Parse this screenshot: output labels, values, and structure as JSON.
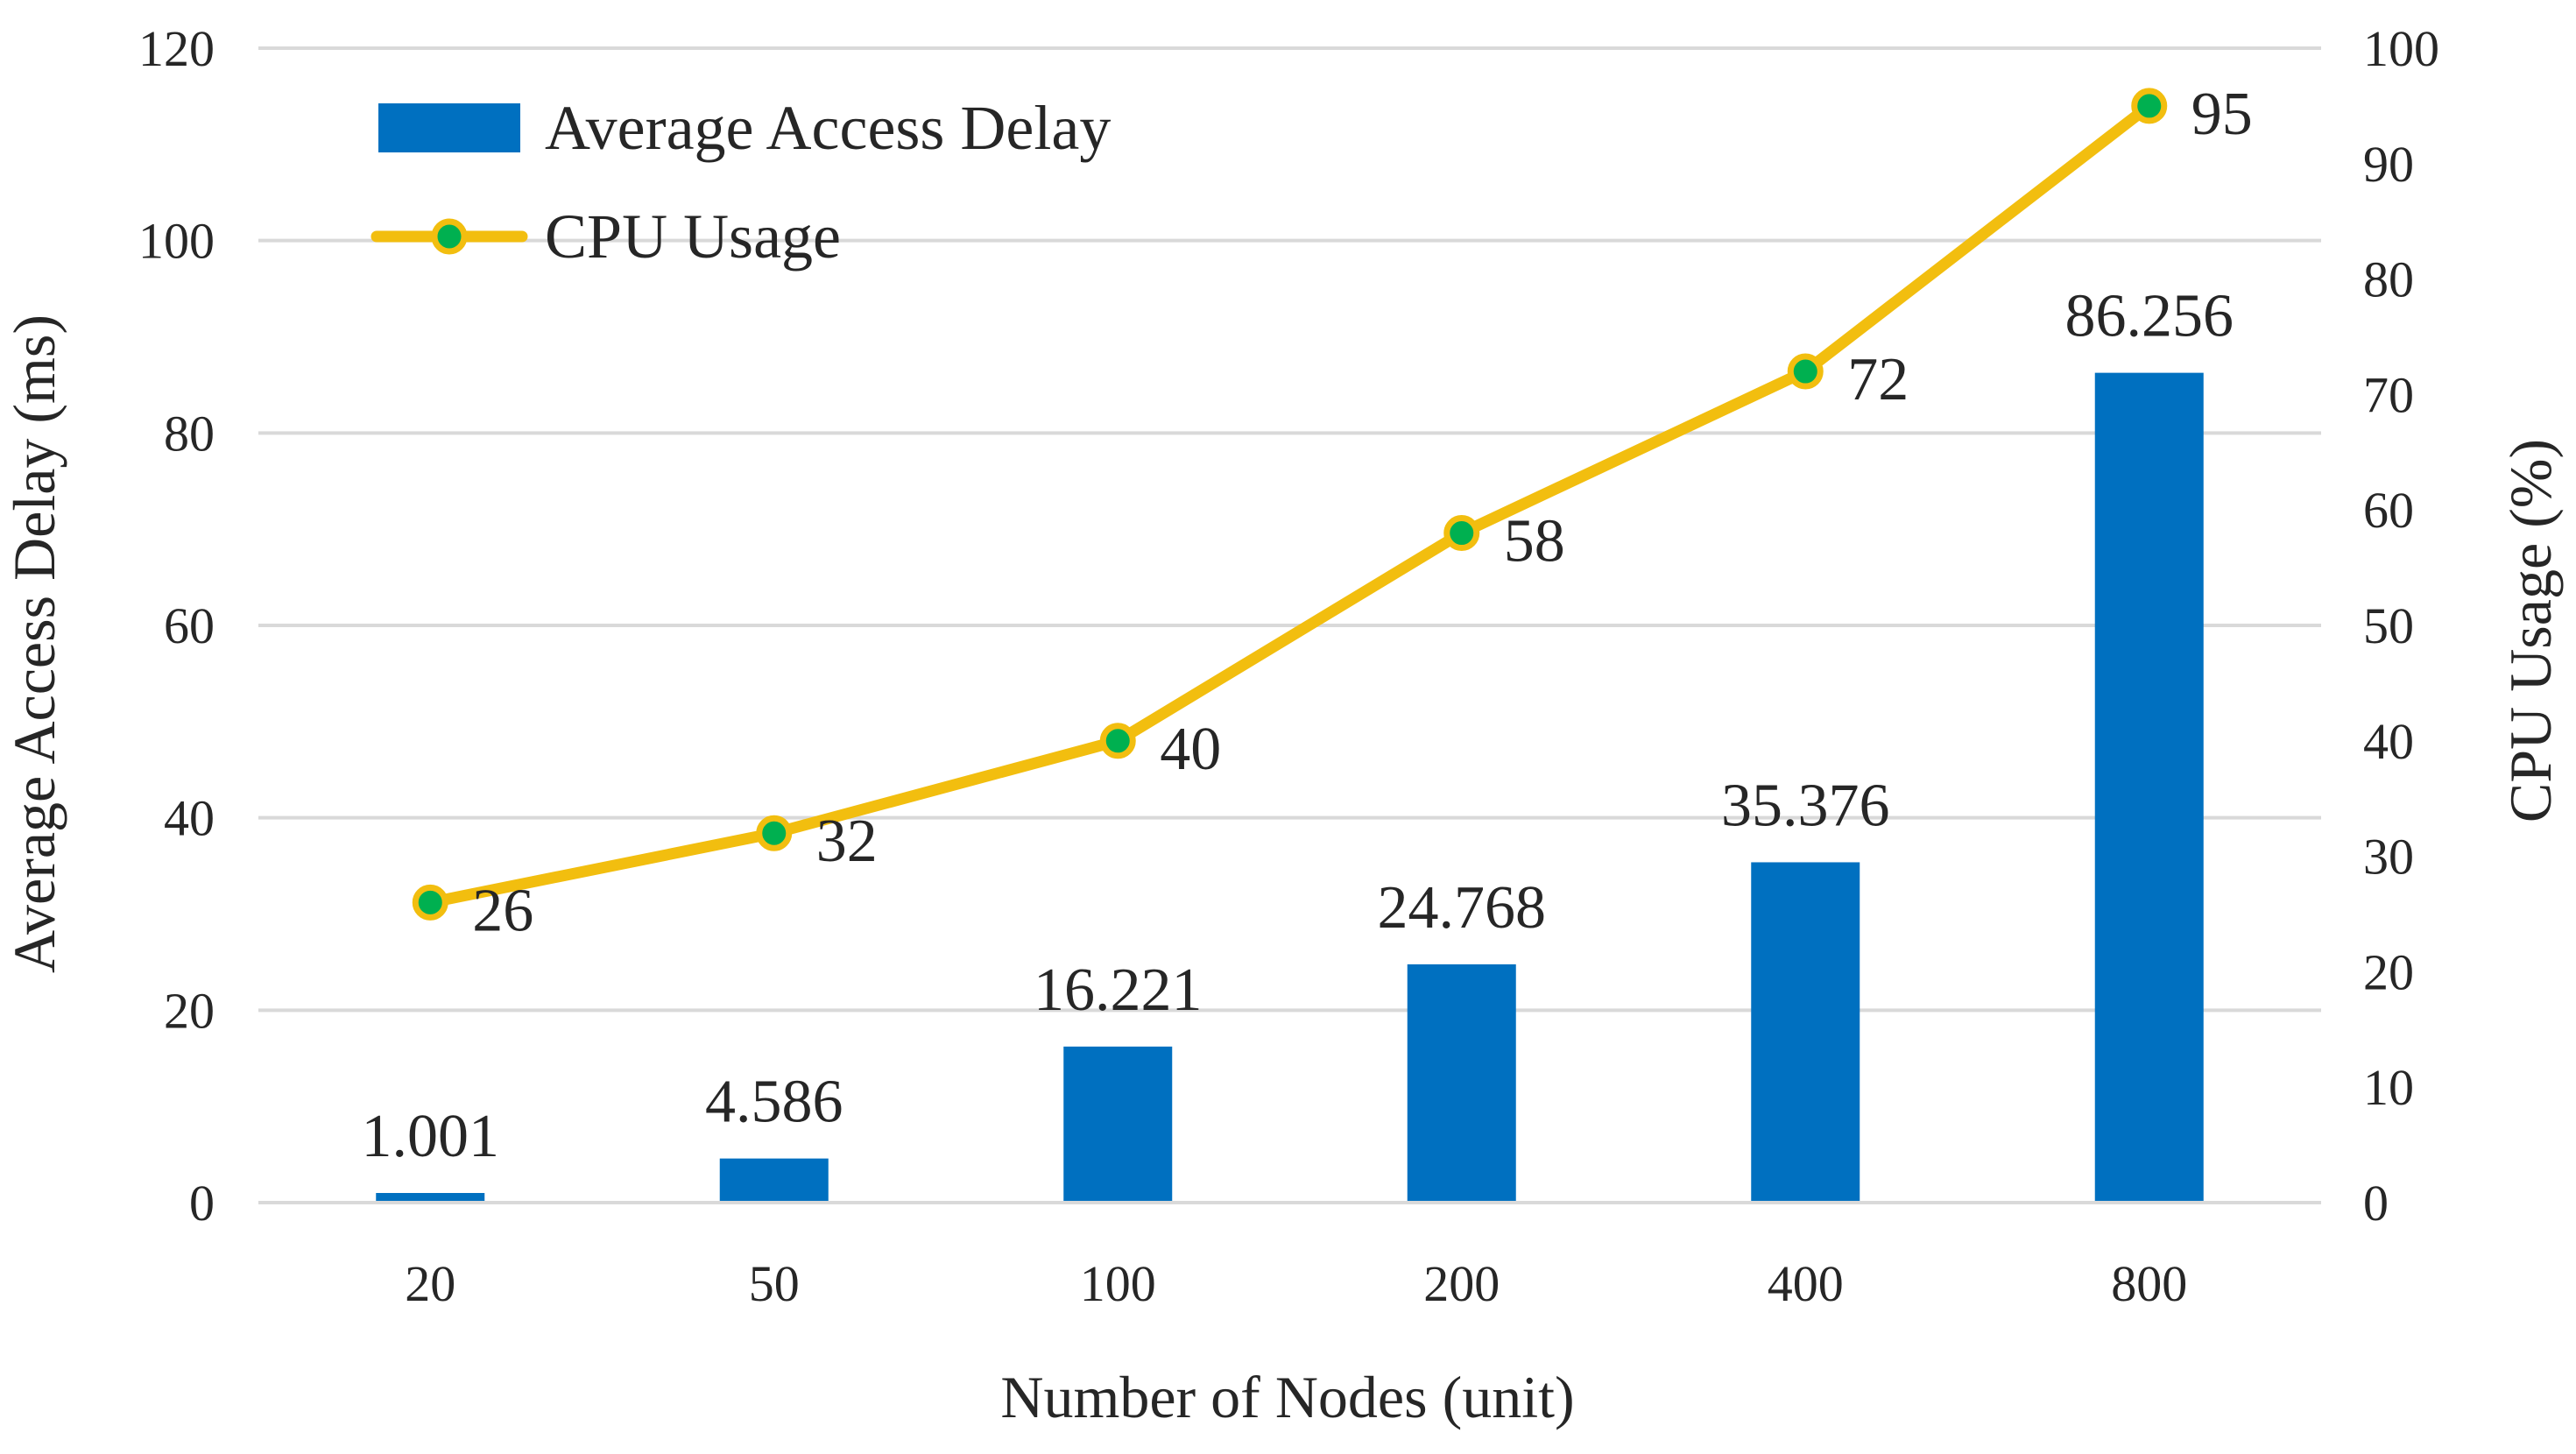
{
  "chart_data": {
    "type": "bar",
    "title": "",
    "xlabel": "Number of Nodes (unit)",
    "ylabel": "Average Access Delay (ms)",
    "y2label": "CPU Usage (%)",
    "categories": [
      "20",
      "50",
      "100",
      "200",
      "400",
      "800"
    ],
    "ylim": [
      0,
      120
    ],
    "y_ticks": [
      "0",
      "20",
      "40",
      "60",
      "80",
      "100",
      "120"
    ],
    "y2lim": [
      0,
      100
    ],
    "y2_ticks": [
      "0",
      "10",
      "20",
      "30",
      "40",
      "50",
      "60",
      "70",
      "80",
      "90",
      "100"
    ],
    "grid": true,
    "legend_position": "top-left",
    "series": [
      {
        "name": "Average Access Delay",
        "type": "bar",
        "axis": "left",
        "color": "#0070C0",
        "values": [
          1.001,
          4.586,
          16.221,
          24.768,
          35.376,
          86.256
        ],
        "labels": [
          "1.001",
          "4.586",
          "16.221",
          "24.768",
          "35.376",
          "86.256"
        ]
      },
      {
        "name": "CPU Usage",
        "type": "line",
        "axis": "right",
        "color": "#F2BE0F",
        "marker_color": "#00B050",
        "values": [
          26,
          32,
          40,
          58,
          72,
          95
        ],
        "labels": [
          "26",
          "32",
          "40",
          "58",
          "72",
          "95"
        ]
      }
    ]
  }
}
